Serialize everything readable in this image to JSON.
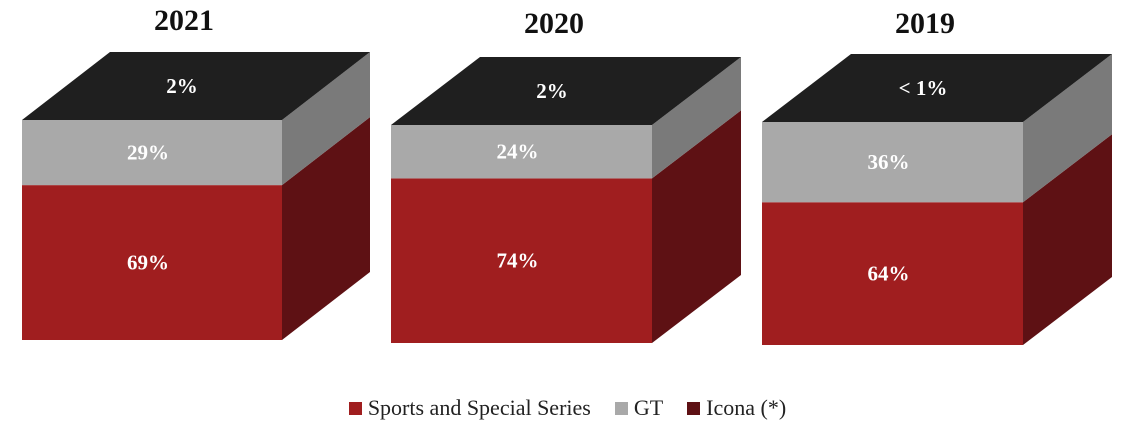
{
  "chart_data": {
    "type": "bar",
    "stacked": true,
    "style": "3d-cube",
    "categories": [
      "2021",
      "2020",
      "2019"
    ],
    "series": [
      {
        "name": "Sports and Special Series",
        "values": [
          69,
          74,
          64
        ],
        "labels": [
          "69%",
          "74%",
          "64%"
        ],
        "color": "#A01E1F",
        "side_color": "#5E1114"
      },
      {
        "name": "GT",
        "values": [
          29,
          24,
          36
        ],
        "labels": [
          "29%",
          "24%",
          "36%"
        ],
        "color": "#A9A9A9",
        "side_color": "#7A7A7A"
      },
      {
        "name": "Icona (*)",
        "values": [
          2,
          2,
          0.5
        ],
        "labels": [
          "2%",
          "2%",
          "< 1%"
        ],
        "color": "#1F1F1F",
        "side_color": "#141414"
      }
    ],
    "title": "",
    "xlabel": "",
    "ylabel": "",
    "legend_position": "bottom-center"
  },
  "legend": {
    "items": [
      {
        "label": "Sports and Special Series",
        "color": "#A01E1F"
      },
      {
        "label": "GT",
        "color": "#A9A9A9"
      },
      {
        "label": "Icona (*)",
        "color": "#5E1114"
      }
    ]
  }
}
